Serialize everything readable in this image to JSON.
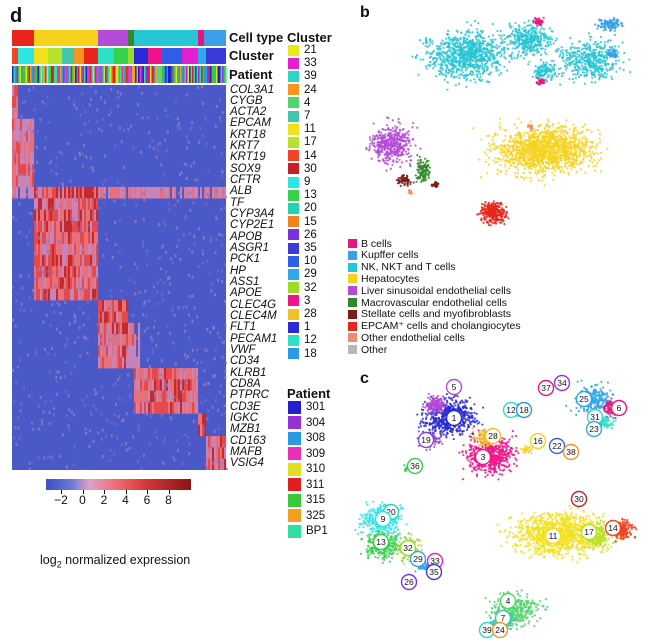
{
  "panel_d": {
    "letter": "d",
    "row_labels": {
      "cell_type": "Cell type",
      "cluster": "Cluster",
      "patient": "Patient"
    },
    "genes": [
      "COL3A1",
      "CYGB",
      "ACTA2",
      "EPCAM",
      "KRT18",
      "KRT7",
      "KRT19",
      "SOX9",
      "CFTR",
      "ALB",
      "TF",
      "CYP3A4",
      "CYP2E1",
      "APOB",
      "ASGR1",
      "PCK1",
      "HP",
      "ASS1",
      "APOE",
      "CLEC4G",
      "CLEC4M",
      "FLT1",
      "PECAM1",
      "VWF",
      "CD34",
      "KLRB1",
      "CD8A",
      "PTPRC",
      "CD3E",
      "IGKC",
      "MZB1",
      "CD163",
      "MAFB",
      "VSIG4"
    ],
    "colorbar": {
      "ticks": [
        "−2",
        "0",
        "2",
        "4",
        "6",
        "8"
      ],
      "label_prefix": "log",
      "label_sub": "2",
      "label_suffix": " normalized expression"
    },
    "cluster_legend": {
      "title": "Cluster",
      "items": [
        {
          "label": "21",
          "color": "#e8e81a"
        },
        {
          "label": "33",
          "color": "#e31fce"
        },
        {
          "label": "39",
          "color": "#2fd4c8"
        },
        {
          "label": "24",
          "color": "#f7941d"
        },
        {
          "label": "4",
          "color": "#4fd66a"
        },
        {
          "label": "7",
          "color": "#42c8a8"
        },
        {
          "label": "11",
          "color": "#f2e11a"
        },
        {
          "label": "17",
          "color": "#b7e22a"
        },
        {
          "label": "14",
          "color": "#f04422"
        },
        {
          "label": "30",
          "color": "#c8202a"
        },
        {
          "label": "9",
          "color": "#2de6e2"
        },
        {
          "label": "13",
          "color": "#35d24b"
        },
        {
          "label": "20",
          "color": "#21d4b0"
        },
        {
          "label": "15",
          "color": "#f5801f"
        },
        {
          "label": "26",
          "color": "#7a2fe0"
        },
        {
          "label": "35",
          "color": "#3a3bd8"
        },
        {
          "label": "10",
          "color": "#2f5fe8"
        },
        {
          "label": "29",
          "color": "#2ea8e8"
        },
        {
          "label": "32",
          "color": "#9ddb2a"
        },
        {
          "label": "3",
          "color": "#f0148a"
        },
        {
          "label": "28",
          "color": "#f0c22a"
        },
        {
          "label": "1",
          "color": "#2a2ad6"
        },
        {
          "label": "12",
          "color": "#2be0c4"
        },
        {
          "label": "18",
          "color": "#2a9ae8"
        }
      ]
    },
    "patient_legend": {
      "title": "Patient",
      "items": [
        {
          "label": "301",
          "color": "#2020d0"
        },
        {
          "label": "304",
          "color": "#9a30d8"
        },
        {
          "label": "308",
          "color": "#2a9ae0"
        },
        {
          "label": "309",
          "color": "#e830b8"
        },
        {
          "label": "310",
          "color": "#e0e020"
        },
        {
          "label": "311",
          "color": "#e02020"
        },
        {
          "label": "315",
          "color": "#38c838"
        },
        {
          "label": "325",
          "color": "#f0a020"
        },
        {
          "label": "BP1",
          "color": "#30e0a0"
        }
      ]
    }
  },
  "panel_b": {
    "letter": "b",
    "cell_types": [
      {
        "label": "B cells",
        "color": "#e8157f"
      },
      {
        "label": "Kupffer cells",
        "color": "#3a9ee8"
      },
      {
        "label": "NK, NKT and T cells",
        "color": "#26c6d4"
      },
      {
        "label": "Hepatocytes",
        "color": "#f7d21c"
      },
      {
        "label": "Liver sinusoidal endothelial cells",
        "color": "#b44ad8"
      },
      {
        "label": "Macrovascular endothelial cells",
        "color": "#2f8a2a"
      },
      {
        "label": "Stellate cells and myofibroblasts",
        "color": "#7a1c1c"
      },
      {
        "label": "EPCAM⁺ cells and cholangiocytes",
        "color": "#e8261c"
      },
      {
        "label": "Other endothelial cells",
        "color": "#f08c6a"
      },
      {
        "label": "Other",
        "color": "#b8b8b8"
      }
    ]
  },
  "panel_c": {
    "letter": "c",
    "cluster_labels": [
      "5",
      "1",
      "19",
      "28",
      "3",
      "12",
      "18",
      "37",
      "34",
      "25",
      "31",
      "6",
      "23",
      "16",
      "22",
      "38",
      "36",
      "30",
      "11",
      "17",
      "14",
      "20",
      "9",
      "13",
      "32",
      "29",
      "33",
      "35",
      "26",
      "4",
      "7",
      "39",
      "24"
    ]
  }
}
